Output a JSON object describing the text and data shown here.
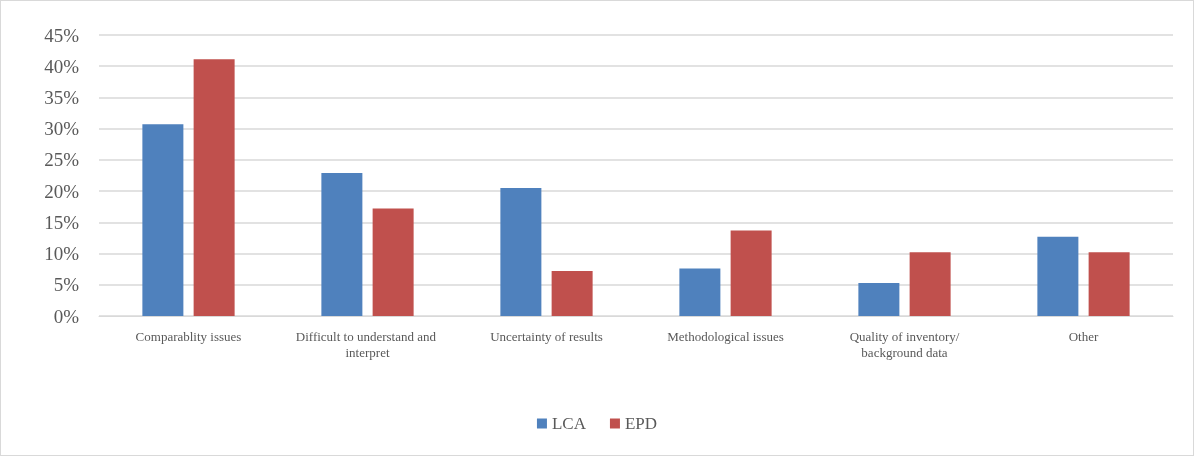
{
  "chart_data": {
    "type": "bar",
    "categories": [
      "Comparablity issues",
      "Difficult to understand and interpret",
      "Uncertainty of results",
      "Methodological issues",
      "Quality of inventory/background data",
      "Other"
    ],
    "series": [
      {
        "name": "LCA",
        "color": "#4f81bd",
        "values": [
          30.7,
          22.9,
          20.5,
          7.6,
          5.3,
          12.7
        ]
      },
      {
        "name": "EPD",
        "color": "#c0504d",
        "values": [
          41.1,
          17.2,
          7.2,
          13.7,
          10.2,
          10.2
        ]
      }
    ],
    "ylim": [
      0,
      45
    ],
    "yticks": [
      {
        "value": 0,
        "label": "0%"
      },
      {
        "value": 5,
        "label": "5%"
      },
      {
        "value": 10,
        "label": "10%"
      },
      {
        "value": 15,
        "label": "15%"
      },
      {
        "value": 20,
        "label": "20%"
      },
      {
        "value": 25,
        "label": "25%"
      },
      {
        "value": 30,
        "label": "30%"
      },
      {
        "value": 35,
        "label": "35%"
      },
      {
        "value": 40,
        "label": "40%"
      },
      {
        "value": 45,
        "label": "45%"
      }
    ],
    "grid": "y",
    "legend": "bottom"
  }
}
